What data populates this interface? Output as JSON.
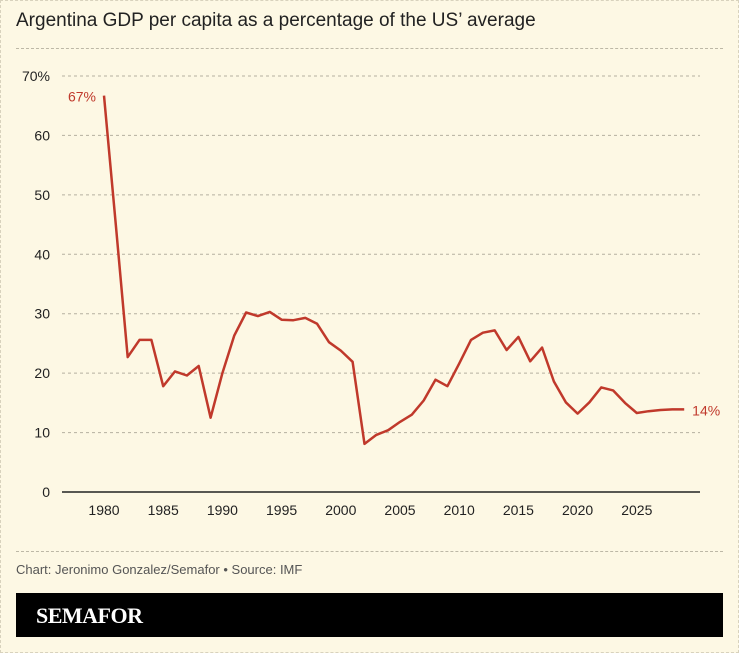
{
  "chart_data": {
    "type": "line",
    "title": "Argentina GDP per capita as a percentage of the US’ average",
    "xlabel": "",
    "ylabel": "",
    "xlim": [
      1980,
      2029
    ],
    "ylim": [
      0,
      70
    ],
    "x_ticks": [
      "1980",
      "1985",
      "1990",
      "1995",
      "2000",
      "2005",
      "2010",
      "2015",
      "2020",
      "2025"
    ],
    "y_ticks": [
      "0",
      "10",
      "20",
      "30",
      "40",
      "50",
      "60",
      "70%"
    ],
    "grid": "horizontal dashed",
    "line_color": "#c0392b",
    "x": [
      1980,
      1981,
      1982,
      1983,
      1984,
      1985,
      1986,
      1987,
      1988,
      1989,
      1990,
      1991,
      1992,
      1993,
      1994,
      1995,
      1996,
      1997,
      1998,
      1999,
      2000,
      2001,
      2002,
      2003,
      2004,
      2005,
      2006,
      2007,
      2008,
      2009,
      2010,
      2011,
      2012,
      2013,
      2014,
      2015,
      2016,
      2017,
      2018,
      2019,
      2020,
      2021,
      2022,
      2023,
      2024,
      2025,
      2026,
      2027,
      2028,
      2029
    ],
    "values": [
      66.7,
      45,
      22.7,
      25.6,
      25.6,
      17.8,
      20.3,
      19.6,
      21.2,
      12.5,
      20,
      26.3,
      30.2,
      29.6,
      30.3,
      29.0,
      28.9,
      29.3,
      28.3,
      25.2,
      23.8,
      21.9,
      8.1,
      9.6,
      10.4,
      11.8,
      13.0,
      15.4,
      18.9,
      17.8,
      21.6,
      25.6,
      26.8,
      27.2,
      23.9,
      26.1,
      22.0,
      24.3,
      18.6,
      15.1,
      13.2,
      15.1,
      17.6,
      17.1,
      15.0,
      13.3,
      13.6,
      13.8,
      13.9,
      13.9
    ],
    "annotations": {
      "start": "67%",
      "end": "14%"
    }
  },
  "credit": "Chart: Jeronimo Gonzalez/Semafor • Source: IMF",
  "brand": "SEMAFOR"
}
